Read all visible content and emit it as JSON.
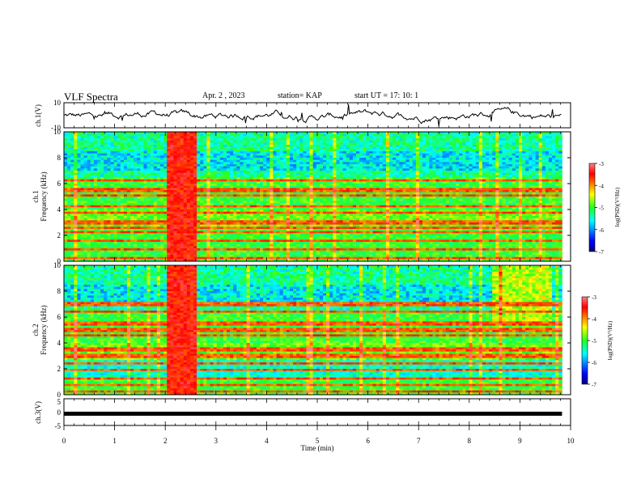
{
  "header": {
    "title": "VLF Spectra",
    "date": "Apr. 2 , 2023",
    "station": "station= KAP",
    "start": "start UT = 17: 10: 1"
  },
  "chart_data": [
    {
      "type": "line",
      "panel": "ch1-waveform",
      "ylabel": "ch.1(V)",
      "ylim": [
        -10,
        10
      ],
      "yticks": [
        10,
        -10
      ],
      "xlim": [
        0,
        10
      ],
      "description_series": "ch.1 signal voltage trace",
      "x_end": 9.83
    },
    {
      "type": "heatmap",
      "panel": "ch1-spectrogram",
      "ylabel": "Frequency (kHz)",
      "channel_label": "ch.1",
      "ylim": [
        0,
        10
      ],
      "yticks": [
        0,
        2,
        4,
        6,
        8,
        10
      ],
      "xlim": [
        0,
        10
      ],
      "x_end": 9.83,
      "colorbar": {
        "label": "log(PSD)(V²/Hz)",
        "range": [
          -7,
          -3
        ],
        "ticks": [
          -3,
          -4,
          -5,
          -6,
          -7
        ]
      }
    },
    {
      "type": "heatmap",
      "panel": "ch2-spectrogram",
      "ylabel": "Frequency (kHz)",
      "channel_label": "ch.2",
      "ylim": [
        0,
        10
      ],
      "yticks": [
        0,
        2,
        4,
        6,
        8,
        10
      ],
      "xlim": [
        0,
        10
      ],
      "x_end": 9.83,
      "colorbar": {
        "label": "log(PSD)(V²/Hz)",
        "range": [
          -7,
          -3
        ],
        "ticks": [
          -3,
          -4,
          -5,
          -6,
          -7
        ]
      }
    },
    {
      "type": "line",
      "panel": "ch3-waveform",
      "ylabel": "ch.3(V)",
      "ylim": [
        -5,
        5
      ],
      "yticks": [
        5,
        0,
        -5
      ],
      "xlim": [
        0,
        10
      ],
      "xticks": [
        0,
        1,
        2,
        3,
        4,
        5,
        6,
        7,
        8,
        9,
        10
      ],
      "xlabel": "Time (min)",
      "level": -0.6,
      "x_end": 9.83
    }
  ]
}
